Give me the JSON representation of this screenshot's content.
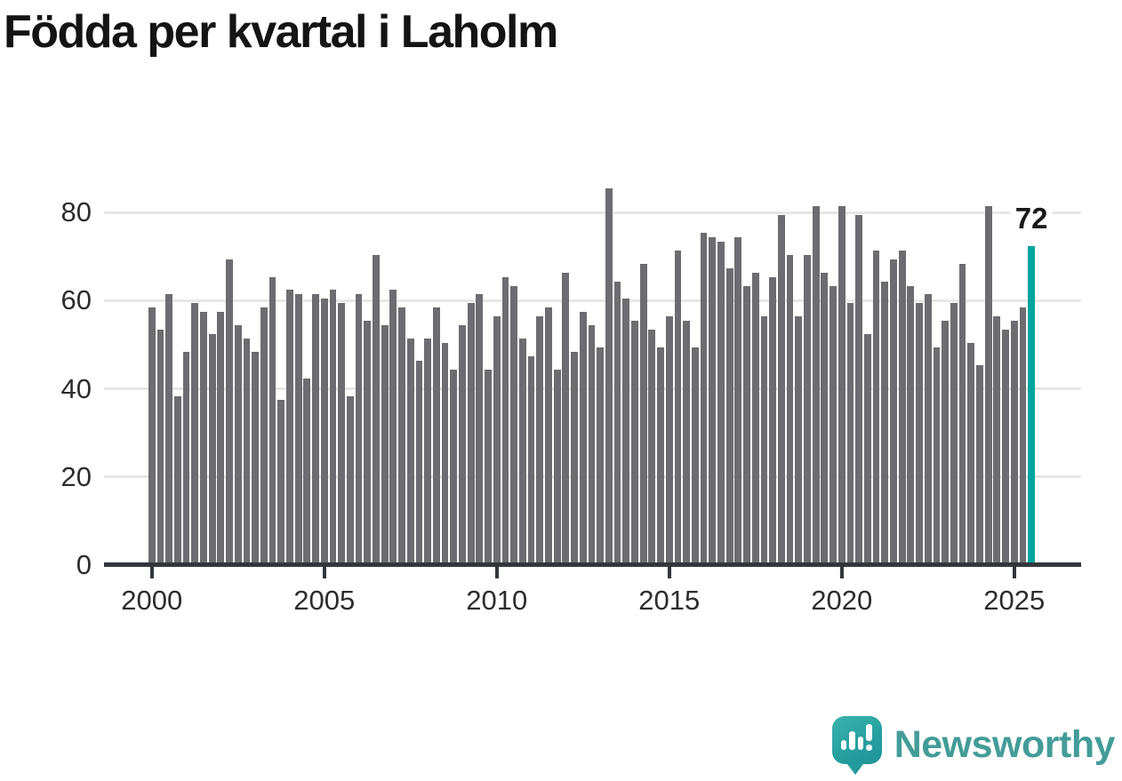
{
  "header": {
    "title": "Födda per kvartal i Laholm"
  },
  "chart_data": {
    "type": "bar",
    "title": "Födda per kvartal i Laholm",
    "xlabel": "",
    "ylabel": "",
    "x_start": "2000 Q1",
    "x_end": "2025 Q3",
    "frequency": "quarterly",
    "values": [
      58,
      53,
      61,
      38,
      48,
      59,
      57,
      52,
      57,
      69,
      54,
      51,
      48,
      58,
      65,
      37,
      62,
      61,
      42,
      61,
      60,
      62,
      59,
      38,
      61,
      55,
      70,
      54,
      62,
      58,
      51,
      46,
      51,
      58,
      50,
      44,
      54,
      59,
      61,
      44,
      56,
      65,
      63,
      51,
      47,
      56,
      58,
      44,
      66,
      48,
      57,
      54,
      49,
      85,
      64,
      60,
      55,
      68,
      53,
      49,
      56,
      71,
      55,
      49,
      75,
      74,
      73,
      67,
      74,
      63,
      66,
      56,
      65,
      79,
      70,
      56,
      70,
      81,
      66,
      63,
      81,
      59,
      79,
      52,
      71,
      64,
      69,
      71,
      63,
      59,
      61,
      49,
      55,
      59,
      68,
      50,
      45,
      81,
      56,
      53,
      55,
      58,
      72
    ],
    "highlight": {
      "index": 102,
      "label": "72",
      "color": "#00a5a0"
    },
    "x_tick_labels": [
      "2000",
      "2005",
      "2010",
      "2015",
      "2020",
      "2025"
    ],
    "x_tick_quarter_index": [
      0,
      20,
      40,
      60,
      80,
      100
    ],
    "y_tick_labels": [
      "0",
      "20",
      "40",
      "60",
      "80"
    ],
    "ylim": [
      0,
      88
    ],
    "grid": true,
    "legend_position": "none",
    "bar_color": "#6d6c71"
  },
  "colors": {
    "bar": "#6d6c71",
    "highlight": "#00a5a0",
    "gridline": "#e7e7e7",
    "axis": "#33363b",
    "tick_text": "#2d2d2d",
    "title_text": "#141414",
    "brand_teal": "#449c98"
  },
  "branding": {
    "wordmark": "Newsworthy"
  }
}
